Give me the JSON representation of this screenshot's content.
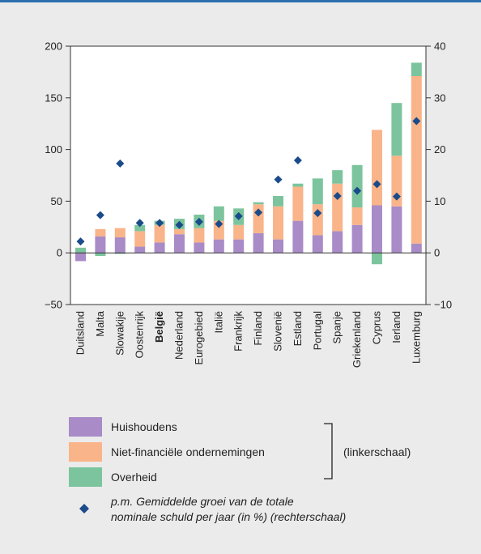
{
  "colors": {
    "frame_top_border": "#2b6fae",
    "background": "#ebebeb",
    "plot_background": "#ffffff",
    "huishoudens": "#a98bc7",
    "niet_financiele": "#f9b489",
    "overheid": "#7cc49d",
    "diamond": "#1a4b8a"
  },
  "chart_data": {
    "type": "bar",
    "stacked": true,
    "categories": [
      "Duitsland",
      "Malta",
      "Slowakije",
      "Oostenrijk",
      "België",
      "Nederland",
      "Eurogebied",
      "Italië",
      "Frankrijk",
      "Finland",
      "Slovenië",
      "Estland",
      "Portugal",
      "Spanje",
      "Griekenland",
      "Cyprus",
      "Ierland",
      "Luxemburg"
    ],
    "bold_category": "België",
    "series": [
      {
        "name": "Huishoudens",
        "axis": "left",
        "values": [
          -8,
          16,
          15,
          6,
          10,
          18,
          10,
          13,
          13,
          19,
          13,
          31,
          17,
          21,
          27,
          46,
          45,
          9
        ]
      },
      {
        "name": "Niet-financiële ondernemingen",
        "axis": "left",
        "values": [
          0,
          7,
          9,
          15,
          17,
          5,
          14,
          18,
          14,
          28,
          32,
          33,
          30,
          46,
          17,
          73,
          49,
          162
        ]
      },
      {
        "name": "Overheid",
        "axis": "left",
        "values": [
          5,
          -3,
          -1,
          6,
          4,
          10,
          13,
          14,
          16,
          2,
          10,
          3,
          25,
          13,
          41,
          -11,
          51,
          13
        ]
      },
      {
        "name": "p.m. Gemiddelde groei van de totale nominale schuld per jaar (in %) (rechterschaal)",
        "axis": "right",
        "marker": "diamond",
        "values": [
          2.2,
          7.3,
          17.3,
          5.8,
          5.8,
          5.4,
          6.0,
          5.6,
          7.1,
          7.8,
          14.2,
          17.9,
          7.7,
          11.0,
          12.0,
          13.3,
          10.9,
          25.5
        ]
      }
    ],
    "y_left": {
      "ylim": [
        -50,
        200
      ],
      "ticks": [
        "−50",
        "0",
        "50",
        "100",
        "150",
        "200"
      ],
      "tick_values": [
        -50,
        0,
        50,
        100,
        150,
        200
      ]
    },
    "y_right": {
      "ylim": [
        -10,
        40
      ],
      "ticks": [
        "−10",
        "0",
        "10",
        "20",
        "30",
        "40"
      ],
      "tick_values": [
        -10,
        0,
        10,
        20,
        30,
        40
      ]
    },
    "grid": false
  },
  "legend": {
    "items": [
      {
        "label": "Huishoudens"
      },
      {
        "label": "Niet-financiële ondernemingen"
      },
      {
        "label": "Overheid"
      }
    ],
    "bracket_label": "(linkerschaal)",
    "note_line1": "p.m. Gemiddelde groei van de totale",
    "note_line2": "nominale schuld per jaar (in %) (rechterschaal)"
  }
}
